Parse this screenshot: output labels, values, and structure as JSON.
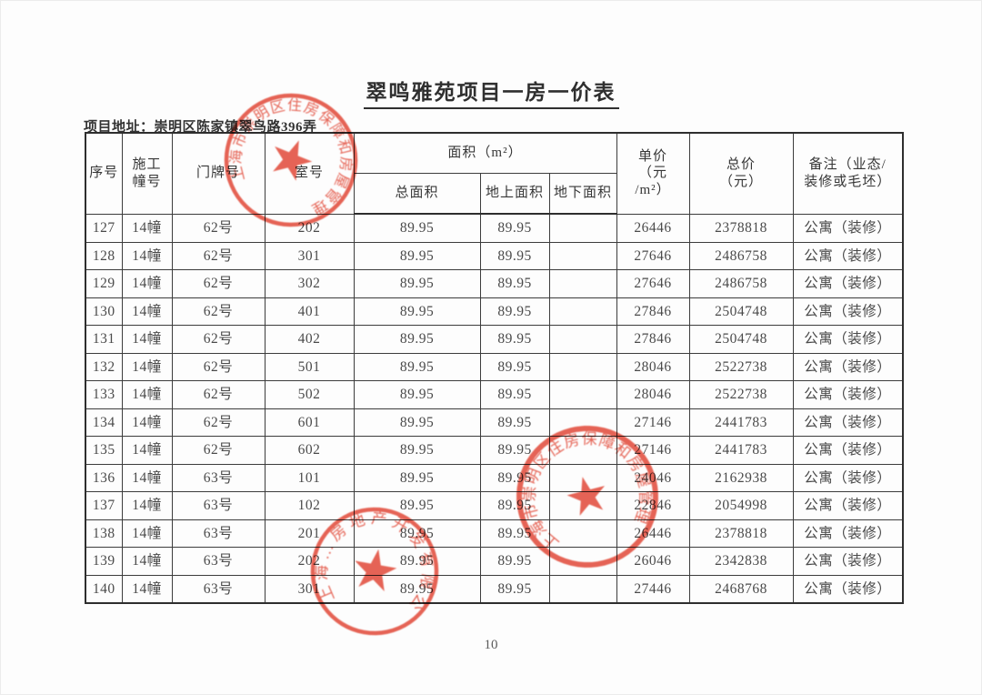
{
  "page": {
    "title": "翠鸣雅苑项目一房一价表",
    "address_label": "项目地址：",
    "address_value": "崇明区陈家镇翠鸟路396弄",
    "page_number": "10"
  },
  "table": {
    "column_keys": [
      "seq",
      "building",
      "door",
      "room",
      "area_total",
      "area_above",
      "area_below",
      "unit_price",
      "total_price",
      "remark"
    ],
    "headers": {
      "seq": "序号",
      "building": "施工\n幢号",
      "door": "门牌号",
      "room": "室号",
      "area_group": "面积（m²）",
      "area_total": "总面积",
      "area_above": "地上面积",
      "area_below": "地下面积",
      "unit_price": "单价\n（元\n/m²）",
      "total_price": "总价\n（元）",
      "remark": "备注（业态/\n装修或毛坯）"
    },
    "rows": [
      [
        "127",
        "14幢",
        "62号",
        "202",
        "89.95",
        "89.95",
        "",
        "26446",
        "2378818",
        "公寓（装修）"
      ],
      [
        "128",
        "14幢",
        "62号",
        "301",
        "89.95",
        "89.95",
        "",
        "27646",
        "2486758",
        "公寓（装修）"
      ],
      [
        "129",
        "14幢",
        "62号",
        "302",
        "89.95",
        "89.95",
        "",
        "27646",
        "2486758",
        "公寓（装修）"
      ],
      [
        "130",
        "14幢",
        "62号",
        "401",
        "89.95",
        "89.95",
        "",
        "27846",
        "2504748",
        "公寓（装修）"
      ],
      [
        "131",
        "14幢",
        "62号",
        "402",
        "89.95",
        "89.95",
        "",
        "27846",
        "2504748",
        "公寓（装修）"
      ],
      [
        "132",
        "14幢",
        "62号",
        "501",
        "89.95",
        "89.95",
        "",
        "28046",
        "2522738",
        "公寓（装修）"
      ],
      [
        "133",
        "14幢",
        "62号",
        "502",
        "89.95",
        "89.95",
        "",
        "28046",
        "2522738",
        "公寓（装修）"
      ],
      [
        "134",
        "14幢",
        "62号",
        "601",
        "89.95",
        "89.95",
        "",
        "27146",
        "2441783",
        "公寓（装修）"
      ],
      [
        "135",
        "14幢",
        "62号",
        "602",
        "89.95",
        "89.95",
        "",
        "27146",
        "2441783",
        "公寓（装修）"
      ],
      [
        "136",
        "14幢",
        "63号",
        "101",
        "89.95",
        "89.95",
        "",
        "24046",
        "2162938",
        "公寓（装修）"
      ],
      [
        "137",
        "14幢",
        "63号",
        "102",
        "89.95",
        "89.95",
        "",
        "22846",
        "2054998",
        "公寓（装修）"
      ],
      [
        "138",
        "14幢",
        "63号",
        "201",
        "89.95",
        "89.95",
        "",
        "26446",
        "2378818",
        "公寓（装修）"
      ],
      [
        "139",
        "14幢",
        "63号",
        "202",
        "89.95",
        "89.95",
        "",
        "26046",
        "2342838",
        "公寓（装修）"
      ],
      [
        "140",
        "14幢",
        "63号",
        "301",
        "89.95",
        "89.95",
        "",
        "27446",
        "2468768",
        "公寓（装修）"
      ]
    ]
  },
  "stamps": {
    "color": "#dc4433",
    "government_seal_text": "上海市崇明区住房保障和房屋管理局",
    "developer_seal_text": "上海…房地产开发有限公司"
  }
}
